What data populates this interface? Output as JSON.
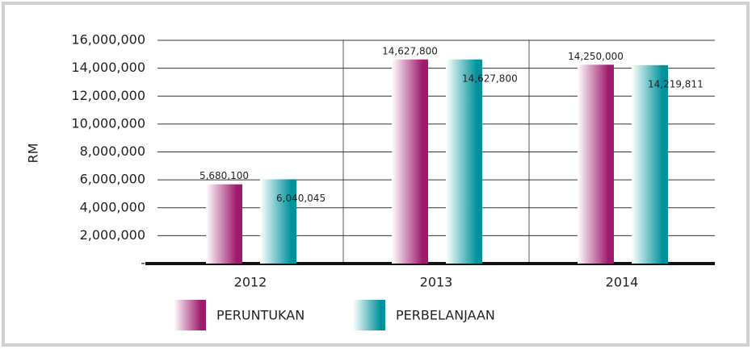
{
  "chart_data": {
    "type": "bar",
    "y_label": "RM",
    "categories": [
      "2012",
      "2013",
      "2014"
    ],
    "series": [
      {
        "name": "PERUNTUKAN",
        "color": "#9e1a6c",
        "values": [
          5680100,
          14627800,
          14250000
        ],
        "value_labels": [
          "5,680,100",
          "14,627,800",
          "14,250,000"
        ]
      },
      {
        "name": "PERBELANJAAN",
        "color": "#00939c",
        "values": [
          6040045,
          14627800,
          14219811
        ],
        "value_labels": [
          "6,040,045",
          "14,627,800",
          "14,219,811"
        ]
      }
    ],
    "ylim": [
      0,
      16000000
    ],
    "yticks": [
      {
        "value": 0,
        "label": "-"
      },
      {
        "value": 2000000,
        "label": "2,000,000"
      },
      {
        "value": 4000000,
        "label": "4,000,000"
      },
      {
        "value": 6000000,
        "label": "6,000,000"
      },
      {
        "value": 8000000,
        "label": "8,000,000"
      },
      {
        "value": 10000000,
        "label": "10,000,000"
      },
      {
        "value": 12000000,
        "label": "12,000,000"
      },
      {
        "value": 14000000,
        "label": "14,000,000"
      },
      {
        "value": 16000000,
        "label": "16,000,000"
      }
    ],
    "grid": true
  }
}
